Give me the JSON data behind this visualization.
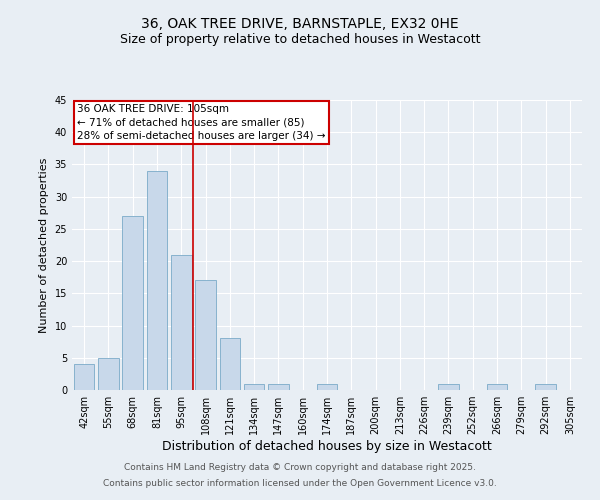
{
  "title": "36, OAK TREE DRIVE, BARNSTAPLE, EX32 0HE",
  "subtitle": "Size of property relative to detached houses in Westacott",
  "xlabel": "Distribution of detached houses by size in Westacott",
  "ylabel": "Number of detached properties",
  "categories": [
    "42sqm",
    "55sqm",
    "68sqm",
    "81sqm",
    "95sqm",
    "108sqm",
    "121sqm",
    "134sqm",
    "147sqm",
    "160sqm",
    "174sqm",
    "187sqm",
    "200sqm",
    "213sqm",
    "226sqm",
    "239sqm",
    "252sqm",
    "266sqm",
    "279sqm",
    "292sqm",
    "305sqm"
  ],
  "values": [
    4,
    5,
    27,
    34,
    21,
    17,
    8,
    1,
    1,
    0,
    1,
    0,
    0,
    0,
    0,
    1,
    0,
    1,
    0,
    1,
    0
  ],
  "bar_color": "#c8d8ea",
  "bar_edge_color": "#7aaac8",
  "bar_width": 0.85,
  "vline_x": 4.5,
  "vline_color": "#cc0000",
  "annotation_text": "36 OAK TREE DRIVE: 105sqm\n← 71% of detached houses are smaller (85)\n28% of semi-detached houses are larger (34) →",
  "annotation_box_color": "#ffffff",
  "annotation_box_edge_color": "#cc0000",
  "ylim": [
    0,
    45
  ],
  "yticks": [
    0,
    5,
    10,
    15,
    20,
    25,
    30,
    35,
    40,
    45
  ],
  "background_color": "#e8eef4",
  "grid_color": "#ffffff",
  "footnote1": "Contains HM Land Registry data © Crown copyright and database right 2025.",
  "footnote2": "Contains public sector information licensed under the Open Government Licence v3.0.",
  "title_fontsize": 10,
  "subtitle_fontsize": 9,
  "xlabel_fontsize": 9,
  "ylabel_fontsize": 8,
  "tick_fontsize": 7,
  "annotation_fontsize": 7.5,
  "footnote_fontsize": 6.5
}
